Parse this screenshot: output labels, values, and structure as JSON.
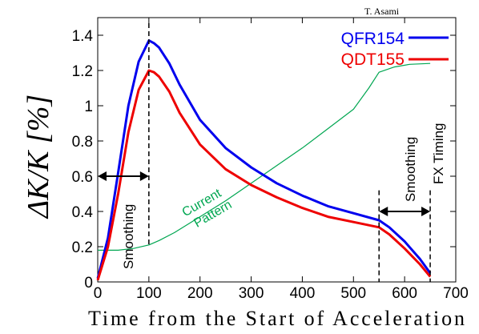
{
  "chart_data": {
    "type": "line",
    "author": "T. Asami",
    "xlabel": "Time from the Start of Acceleration",
    "ylabel": "ΔK/K [%]",
    "xlim": [
      0,
      700
    ],
    "ylim": [
      0,
      1.5
    ],
    "x_ticks": [
      "0",
      "100",
      "200",
      "300",
      "400",
      "500",
      "600",
      "700"
    ],
    "y_ticks": [
      "0",
      "0.2",
      "0.4",
      "0.6",
      "0.8",
      "1",
      "1.2",
      "1.4"
    ],
    "x_tick_values": [
      0,
      100,
      200,
      300,
      400,
      500,
      600,
      700
    ],
    "y_tick_values": [
      0,
      0.2,
      0.4,
      0.6,
      0.8,
      1.0,
      1.2,
      1.4
    ],
    "grid": false,
    "legend_position": "top-right",
    "series": [
      {
        "name": "QFR154",
        "color": "#0000ee",
        "points": [
          [
            0,
            0.02
          ],
          [
            20,
            0.25
          ],
          [
            40,
            0.62
          ],
          [
            60,
            1.0
          ],
          [
            80,
            1.25
          ],
          [
            100,
            1.37
          ],
          [
            110,
            1.355
          ],
          [
            120,
            1.33
          ],
          [
            140,
            1.24
          ],
          [
            160,
            1.12
          ],
          [
            200,
            0.92
          ],
          [
            250,
            0.76
          ],
          [
            300,
            0.65
          ],
          [
            350,
            0.56
          ],
          [
            400,
            0.49
          ],
          [
            450,
            0.43
          ],
          [
            500,
            0.39
          ],
          [
            550,
            0.35
          ],
          [
            570,
            0.31
          ],
          [
            600,
            0.23
          ],
          [
            630,
            0.13
          ],
          [
            650,
            0.05
          ]
        ]
      },
      {
        "name": "QDT155",
        "color": "#ee0000",
        "points": [
          [
            0,
            0.01
          ],
          [
            20,
            0.2
          ],
          [
            40,
            0.5
          ],
          [
            60,
            0.85
          ],
          [
            80,
            1.09
          ],
          [
            100,
            1.2
          ],
          [
            110,
            1.19
          ],
          [
            120,
            1.165
          ],
          [
            140,
            1.08
          ],
          [
            160,
            0.96
          ],
          [
            200,
            0.78
          ],
          [
            250,
            0.64
          ],
          [
            300,
            0.55
          ],
          [
            350,
            0.48
          ],
          [
            400,
            0.42
          ],
          [
            450,
            0.37
          ],
          [
            500,
            0.34
          ],
          [
            550,
            0.31
          ],
          [
            570,
            0.27
          ],
          [
            600,
            0.19
          ],
          [
            630,
            0.1
          ],
          [
            650,
            0.03
          ]
        ]
      },
      {
        "name": "Current Pattern",
        "color": "#00a651",
        "points": [
          [
            0,
            0.18
          ],
          [
            40,
            0.18
          ],
          [
            70,
            0.19
          ],
          [
            100,
            0.21
          ],
          [
            120,
            0.235
          ],
          [
            150,
            0.28
          ],
          [
            200,
            0.37
          ],
          [
            250,
            0.46
          ],
          [
            300,
            0.56
          ],
          [
            350,
            0.66
          ],
          [
            400,
            0.76
          ],
          [
            450,
            0.87
          ],
          [
            500,
            0.98
          ],
          [
            530,
            1.1
          ],
          [
            550,
            1.19
          ],
          [
            580,
            1.22
          ],
          [
            610,
            1.235
          ],
          [
            650,
            1.24
          ]
        ]
      }
    ],
    "annotations": {
      "current_pattern": [
        "Current",
        "Pattern"
      ],
      "smoothing_left": "Smoothing",
      "smoothing_right": "Smoothing",
      "fx_timing": "FX Timing",
      "peak_marker_x": 100,
      "left_arrow_x": [
        0,
        100
      ],
      "left_arrow_y": 0.6,
      "right_marker_x": [
        550,
        650
      ],
      "right_arrow_y": 0.4
    }
  }
}
